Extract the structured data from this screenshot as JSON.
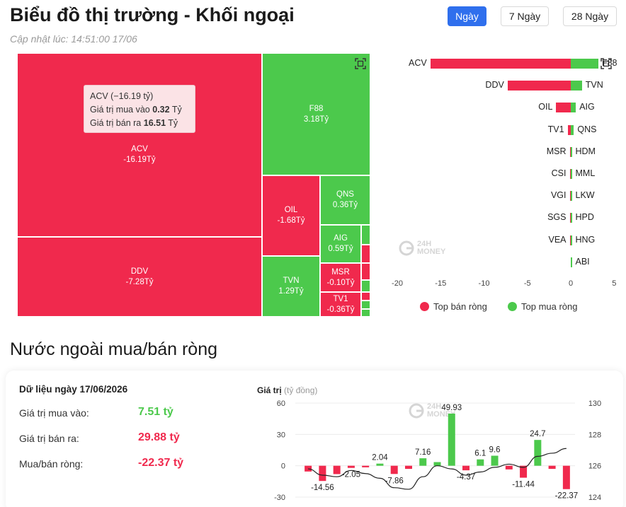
{
  "header": {
    "title": "Biểu đồ thị trường - Khối ngoại",
    "updated": "Cập nhật lúc: 14:51:00 17/06",
    "tabs": [
      {
        "label": "Ngày",
        "active": true
      },
      {
        "label": "7 Ngày",
        "active": false
      },
      {
        "label": "28 Ngày",
        "active": false
      }
    ]
  },
  "colors": {
    "sell": "#f0294d",
    "buy": "#4cc94c",
    "accent": "#2f6fed"
  },
  "watermark": {
    "line1": "24H",
    "line2": "MONEY"
  },
  "treemap": {
    "cells": [
      {
        "ticker": "ACV",
        "value": "-16.19Tỷ",
        "side": "sell"
      },
      {
        "ticker": "DDV",
        "value": "-7.28Tỷ",
        "side": "sell"
      },
      {
        "ticker": "F88",
        "value": "3.18Tỷ",
        "side": "buy"
      },
      {
        "ticker": "OIL",
        "value": "-1.68Tỷ",
        "side": "sell"
      },
      {
        "ticker": "QNS",
        "value": "0.36Tỷ",
        "side": "buy"
      },
      {
        "ticker": "AIG",
        "value": "0.59Tỷ",
        "side": "buy"
      },
      {
        "ticker": "TVN",
        "value": "1.29Tỷ",
        "side": "buy"
      },
      {
        "ticker": "MSR",
        "value": "-0.10Tỷ",
        "side": "sell"
      },
      {
        "ticker": "TV1",
        "value": "-0.36Tỷ",
        "side": "sell"
      }
    ],
    "tooltip": {
      "title": "ACV (−16.19 tỷ)",
      "buy_label": "Giá trị mua vào",
      "buy_value": "0.32",
      "sell_label": "Giá trị bán ra",
      "sell_value": "16.51",
      "unit": "Tỷ"
    }
  },
  "chart_data": [
    {
      "type": "bar",
      "orientation": "horizontal",
      "sell_tickers": [
        "ACV",
        "DDV",
        "OIL",
        "TV1",
        "MSR",
        "CSI",
        "VGI",
        "SGS",
        "VEA",
        ""
      ],
      "sell_values": [
        -16.19,
        -7.28,
        -1.68,
        -0.36,
        -0.1,
        -0.02,
        -0.01,
        -0.01,
        -0.01,
        0
      ],
      "buy_tickers": [
        "F88",
        "TVN",
        "AIG",
        "QNS",
        "HDM",
        "MML",
        "LKW",
        "HPD",
        "HNG",
        "ABI"
      ],
      "buy_values": [
        3.18,
        1.29,
        0.59,
        0.36,
        0.03,
        0.02,
        0.01,
        0.01,
        0.01,
        0.01
      ],
      "x_ticks": [
        -20,
        -15,
        -10,
        -5,
        0,
        5
      ],
      "xlim": [
        -20,
        5
      ],
      "legend": [
        {
          "label": "Top bán ròng",
          "color": "#f0294d"
        },
        {
          "label": "Top mua ròng",
          "color": "#4cc94c"
        }
      ]
    },
    {
      "type": "bar+line",
      "title": "Giá trị",
      "unit": "(tỷ đồng)",
      "values": [
        -5.5,
        -14.56,
        -8.0,
        -2.05,
        -1.5,
        2.04,
        -7.86,
        -3.0,
        7.16,
        3.5,
        49.93,
        -4.37,
        6.1,
        9.6,
        -3.5,
        -11.44,
        24.7,
        -3.0,
        -22.37
      ],
      "labels": [
        "",
        "-14.56",
        "",
        "-2.05",
        "",
        "2.04",
        "-7.86",
        "",
        "7.16",
        "",
        "49.93",
        "-4.37",
        "6.1",
        "9.6",
        "",
        "-11.44",
        "24.7",
        "",
        "-22.37"
      ],
      "line": [
        125.8,
        125.4,
        125.3,
        125.7,
        125.5,
        125.2,
        124.6,
        124.5,
        125.3,
        126.0,
        125.8,
        125.4,
        125.6,
        125.9,
        126.1,
        125.9,
        126.6,
        126.8,
        127.1
      ],
      "y_ticks": [
        -30,
        0,
        30,
        60
      ],
      "ylim": [
        -30,
        60
      ],
      "y2_ticks": [
        124,
        126,
        128,
        130
      ],
      "y2lim": [
        124,
        130
      ]
    }
  ],
  "summary": {
    "date_label": "Dữ liệu ngày 17/06/2026",
    "rows": [
      {
        "label": "Giá trị mua vào:",
        "value": "7.51 tỷ"
      },
      {
        "label": "Giá trị bán ra:",
        "value": "29.88 tỷ"
      },
      {
        "label": "Mua/bán ròng:",
        "value": "-22.37 tỷ"
      }
    ]
  },
  "section2_title": "Nước ngoài mua/bán ròng"
}
